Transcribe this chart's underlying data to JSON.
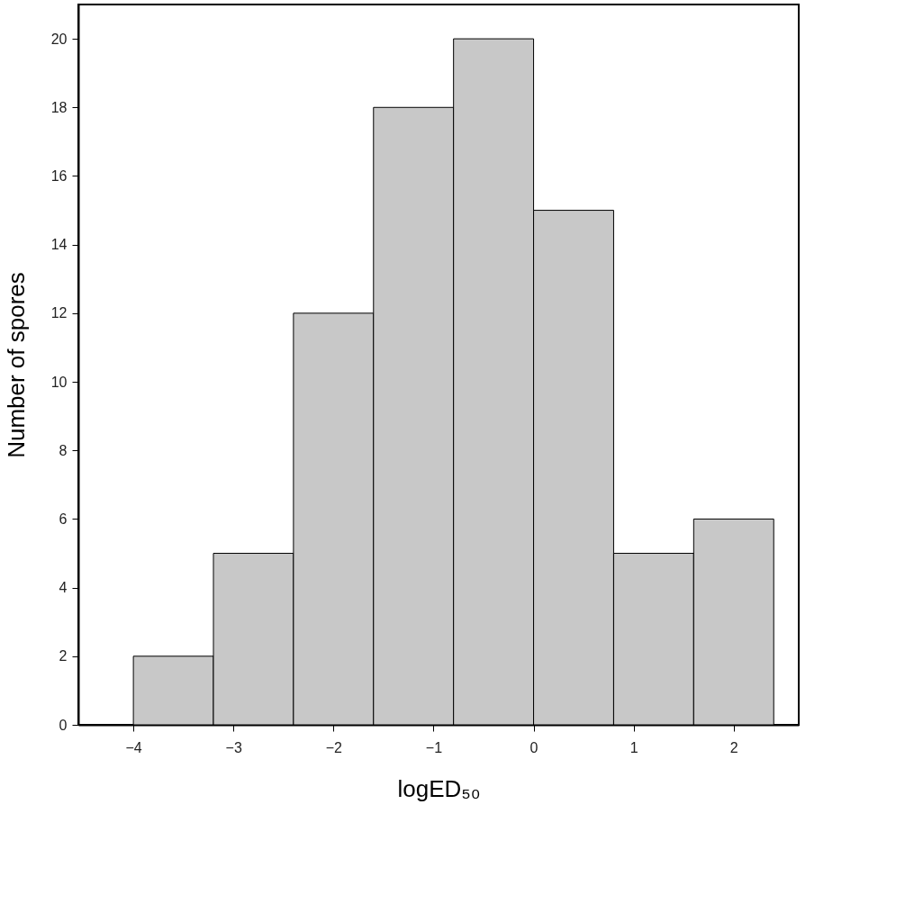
{
  "chart_data": {
    "type": "histogram",
    "xlabel": "logED₅₀",
    "ylabel": "Number of spores",
    "bins": [
      -4,
      -3.2,
      -2.4,
      -1.6,
      -0.8,
      0,
      0.8,
      1.6,
      2.4
    ],
    "values": [
      2,
      5,
      12,
      18,
      20,
      15,
      5,
      6
    ],
    "color": "#c8c8c8",
    "xlim": [
      -4.55,
      2.65
    ],
    "xticks": [
      -4,
      -3,
      -2,
      -1,
      0,
      1,
      2
    ],
    "ylim": [
      0,
      21
    ],
    "yticks": [
      0,
      2,
      4,
      6,
      8,
      10,
      12,
      14,
      16,
      18,
      20
    ],
    "grid": false
  }
}
